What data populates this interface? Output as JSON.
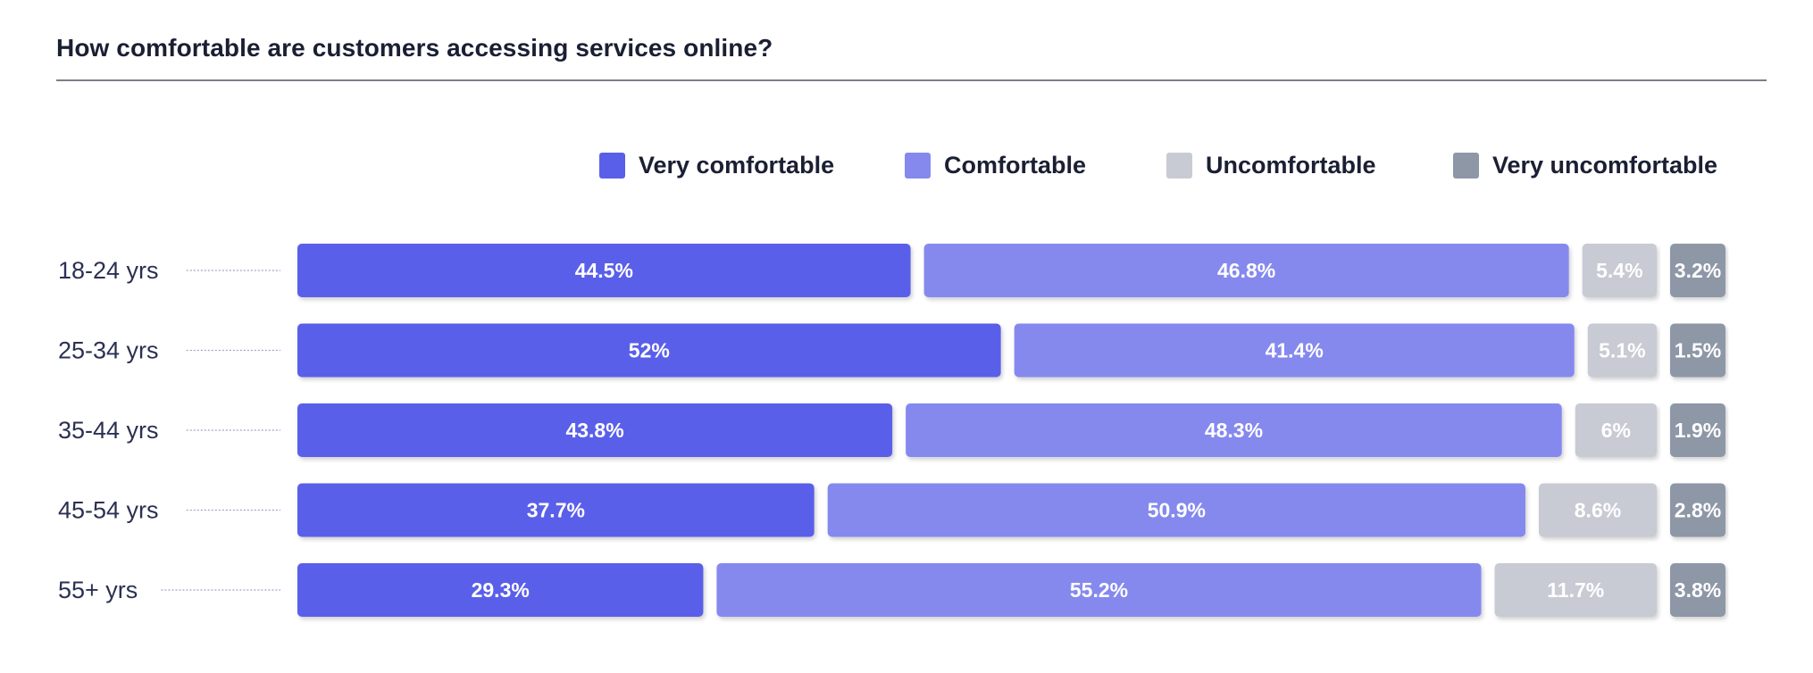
{
  "title": "How comfortable are customers accessing services online?",
  "chart_data": {
    "type": "bar",
    "orientation": "horizontal",
    "stacked": true,
    "title": "How comfortable are customers accessing services online?",
    "categories": [
      "18-24 yrs",
      "25-34 yrs",
      "35-44 yrs",
      "45-54 yrs",
      "55+ yrs"
    ],
    "series": [
      {
        "name": "Very comfortable",
        "color": "#5a5fea",
        "values": [
          44.5,
          52,
          43.8,
          37.7,
          29.3
        ],
        "labels": [
          "44.5%",
          "52%",
          "43.8%",
          "37.7%",
          "29.3%"
        ]
      },
      {
        "name": "Comfortable",
        "color": "#8589ee",
        "values": [
          46.8,
          41.4,
          48.3,
          50.9,
          55.2
        ],
        "labels": [
          "46.8%",
          "41.4%",
          "48.3%",
          "50.9%",
          "55.2%"
        ]
      },
      {
        "name": "Uncomfortable",
        "color": "#c8cbd3",
        "values": [
          5.4,
          5.1,
          6,
          8.6,
          11.7
        ],
        "labels": [
          "5.4%",
          "5.1%",
          "6%",
          "8.6%",
          "11.7%"
        ]
      },
      {
        "name": "Very uncomfortable",
        "color": "#8e97a6",
        "values": [
          3.2,
          1.5,
          1.9,
          2.8,
          3.8
        ],
        "labels": [
          "3.2%",
          "1.5%",
          "1.9%",
          "2.8%",
          "3.8%"
        ]
      }
    ],
    "xlim": [
      0,
      100
    ],
    "legend_position": "top-right",
    "grid": false
  }
}
